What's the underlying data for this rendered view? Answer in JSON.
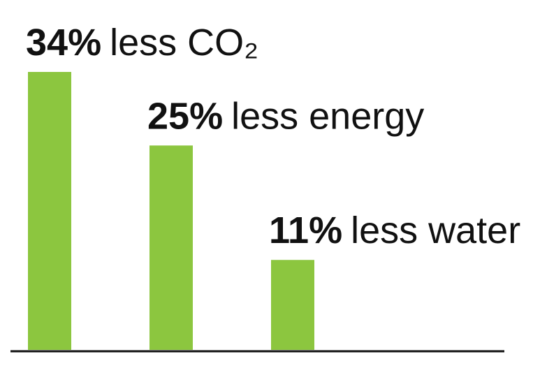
{
  "chart_data": {
    "type": "bar",
    "categories": [
      "less CO₂",
      "less energy",
      "less water"
    ],
    "values": [
      34,
      25,
      11
    ],
    "value_labels": [
      "34%",
      "25%",
      "11%"
    ],
    "color": "#8cc63f"
  }
}
